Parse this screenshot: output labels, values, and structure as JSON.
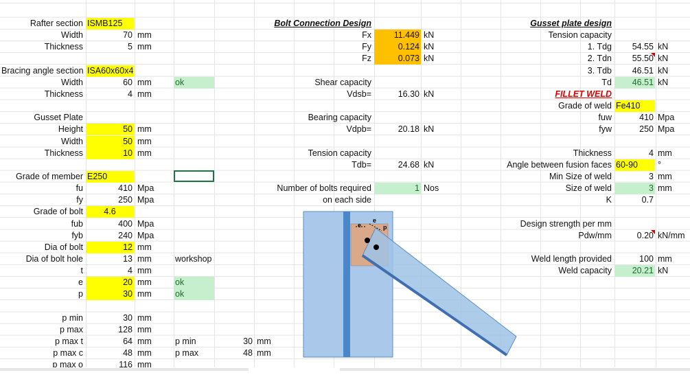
{
  "left": [
    {
      "label": "Rafter section",
      "value": "ISMB125"
    },
    {
      "label": "Width",
      "value": "70",
      "unit": "mm"
    },
    {
      "label": "Thickness",
      "value": "5",
      "unit": "mm"
    },
    {
      "label": "Bracing angle section",
      "value": "ISA60x60x4"
    },
    {
      "label": "Width",
      "value": "60",
      "unit": "mm",
      "note": "ok"
    },
    {
      "label": "Thickness",
      "value": "4",
      "unit": "mm"
    },
    {
      "label": "Gusset Plate"
    },
    {
      "label": "Height",
      "value": "50",
      "unit": "mm"
    },
    {
      "label": "Width",
      "value": "50",
      "unit": "mm"
    },
    {
      "label": "Thickness",
      "value": "10",
      "unit": "mm"
    },
    {
      "label": "Grade of member",
      "value": "E250"
    },
    {
      "label": "fu",
      "value": "410",
      "unit": "Mpa"
    },
    {
      "label": "fy",
      "value": "250",
      "unit": "Mpa"
    },
    {
      "label": "Grade of bolt",
      "value": "4.6"
    },
    {
      "label": "fub",
      "value": "400",
      "unit": "Mpa"
    },
    {
      "label": "fyb",
      "value": "240",
      "unit": "Mpa"
    },
    {
      "label": "Dia of bolt",
      "value": "12",
      "unit": "mm"
    },
    {
      "label": "Dia of bolt hole",
      "value": "13",
      "unit": "mm",
      "note": "workshop"
    },
    {
      "label": "t",
      "value": "4",
      "unit": "mm"
    },
    {
      "label": "e",
      "value": "20",
      "unit": "mm",
      "note": "ok"
    },
    {
      "label": "p",
      "value": "30",
      "unit": "mm",
      "note": "ok"
    },
    {
      "label": "p min",
      "value": "30",
      "unit": "mm"
    },
    {
      "label": "p max",
      "value": "128",
      "unit": "mm"
    },
    {
      "label": "p max t",
      "value": "64",
      "unit": "mm",
      "note": "p min",
      "value2": "30",
      "unit2": "mm"
    },
    {
      "label": "p max c",
      "value": "48",
      "unit": "mm",
      "note": "p max",
      "value2": "48",
      "unit2": "mm"
    },
    {
      "label": "p max o",
      "value": "116",
      "unit": "mm"
    }
  ],
  "middle": [
    {
      "label": "Bolt Connection Design"
    },
    {
      "label": "Fx",
      "value": "11.449",
      "unit": "kN"
    },
    {
      "label": "Fy",
      "value": "0.124",
      "unit": "kN"
    },
    {
      "label": "Fz",
      "value": "0.073",
      "unit": "kN"
    },
    {
      "label": "Shear capacity"
    },
    {
      "label": "Vdsb=",
      "value": "16.30",
      "unit": "kN"
    },
    {
      "label": "Bearing capacity"
    },
    {
      "label": "Vdpb=",
      "value": "20.18",
      "unit": "kN"
    },
    {
      "label": "Tension capacity"
    },
    {
      "label": "Tdb=",
      "value": "24.68",
      "unit": "kN"
    },
    {
      "label": "Number of bolts required",
      "value": "1",
      "unit": "Nos"
    },
    {
      "label": "on each side"
    }
  ],
  "right": [
    {
      "label": "Gusset plate design"
    },
    {
      "label": "Tension capacity"
    },
    {
      "label": "1. Tdg",
      "value": "54.55",
      "unit": "kN"
    },
    {
      "label": "2. Tdn",
      "value": "55.50",
      "unit": "kN"
    },
    {
      "label": "3. Tdb",
      "value": "46.51",
      "unit": "kN"
    },
    {
      "label": "Td",
      "value": "46.51",
      "unit": "kN"
    },
    {
      "label": "FILLET WELD"
    },
    {
      "label": "Grade of weld",
      "value": "Fe410"
    },
    {
      "label": "fuw",
      "value": "410",
      "unit": "Mpa"
    },
    {
      "label": "fyw",
      "value": "250",
      "unit": "Mpa"
    },
    {
      "label": "Thickness",
      "value": "4",
      "unit": "mm"
    },
    {
      "label": "Angle between fusion faces",
      "value": "60-90",
      "unit": "°"
    },
    {
      "label": "Min Size of weld",
      "value": "3",
      "unit": "mm"
    },
    {
      "label": "Size of weld",
      "value": "3",
      "unit": "mm"
    },
    {
      "label": "K",
      "value": "0.7"
    },
    {
      "label": "Design strength per mm"
    },
    {
      "label": "Pdw/mm",
      "value": "0.20",
      "unit": "kN/mm"
    },
    {
      "label": "Weld length provided",
      "value": "100",
      "unit": "mm"
    },
    {
      "label": "Weld capacity",
      "value": "20.21",
      "unit": "kN"
    }
  ],
  "diagram": {
    "labels": [
      "e",
      "e",
      "p"
    ]
  }
}
